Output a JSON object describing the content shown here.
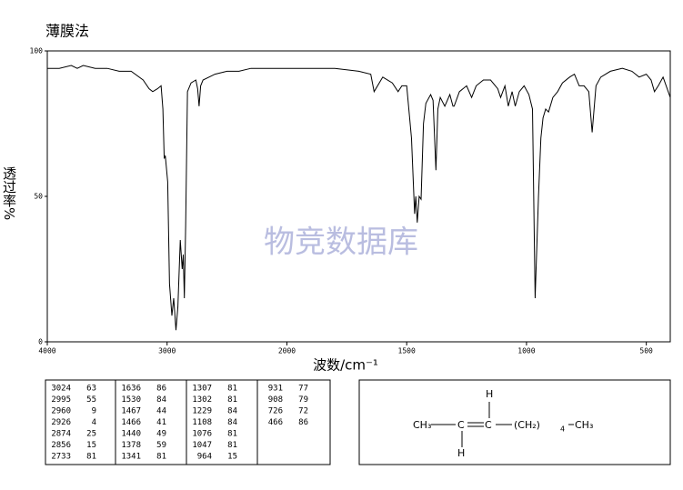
{
  "chart_data": {
    "type": "line",
    "title": "薄膜法",
    "xlabel": "波数/cm⁻¹",
    "ylabel": "透过率%",
    "watermark": "物竞数据库",
    "xlim": [
      4000,
      400
    ],
    "xscale_change_at": 2000,
    "xscale_factor": 2,
    "xticks": [
      4000,
      3000,
      2000,
      1500,
      1000,
      500
    ],
    "ylim": [
      0,
      100
    ],
    "yticks": [
      0,
      50,
      100
    ],
    "color": "#000000",
    "x": [
      4000,
      3900,
      3800,
      3750,
      3700,
      3600,
      3500,
      3400,
      3300,
      3200,
      3150,
      3120,
      3080,
      3050,
      3035,
      3024,
      3015,
      2995,
      2980,
      2960,
      2945,
      2926,
      2910,
      2890,
      2874,
      2865,
      2856,
      2845,
      2830,
      2800,
      2760,
      2745,
      2733,
      2720,
      2700,
      2600,
      2500,
      2400,
      2300,
      2200,
      2100,
      2000,
      1900,
      1800,
      1700,
      1650,
      1636,
      1600,
      1560,
      1536,
      1520,
      1500,
      1480,
      1467,
      1462,
      1456,
      1448,
      1440,
      1430,
      1420,
      1400,
      1390,
      1378,
      1370,
      1360,
      1341,
      1320,
      1307,
      1302,
      1280,
      1250,
      1229,
      1210,
      1180,
      1150,
      1120,
      1108,
      1090,
      1076,
      1060,
      1047,
      1030,
      1010,
      990,
      975,
      964,
      950,
      940,
      931,
      920,
      908,
      890,
      870,
      850,
      820,
      800,
      780,
      760,
      740,
      726,
      710,
      690,
      650,
      600,
      560,
      530,
      500,
      480,
      466,
      450,
      430,
      400
    ],
    "values": [
      94,
      94,
      95,
      94,
      95,
      94,
      94,
      93,
      93,
      90,
      87,
      86,
      87,
      88,
      80,
      63,
      64,
      55,
      20,
      9,
      15,
      4,
      12,
      35,
      25,
      30,
      15,
      40,
      86,
      89,
      90,
      87,
      81,
      88,
      90,
      92,
      93,
      93,
      94,
      94,
      94,
      94,
      94,
      94,
      93,
      92,
      86,
      91,
      89,
      86,
      88,
      88,
      70,
      44,
      50,
      41,
      50,
      49,
      75,
      82,
      85,
      83,
      59,
      80,
      84,
      81,
      85,
      81,
      81,
      86,
      88,
      84,
      88,
      90,
      90,
      87,
      84,
      88,
      81,
      86,
      81,
      86,
      88,
      85,
      80,
      15,
      50,
      70,
      77,
      80,
      79,
      84,
      86,
      89,
      91,
      92,
      88,
      88,
      86,
      72,
      88,
      91,
      93,
      94,
      93,
      91,
      92,
      90,
      86,
      88,
      91,
      84
    ]
  },
  "peak_table": [
    [
      [
        3024,
        63
      ],
      [
        2995,
        55
      ],
      [
        2960,
        9
      ],
      [
        2926,
        4
      ],
      [
        2874,
        25
      ],
      [
        2856,
        15
      ],
      [
        2733,
        81
      ]
    ],
    [
      [
        1636,
        86
      ],
      [
        1530,
        84
      ],
      [
        1467,
        44
      ],
      [
        1466,
        41
      ],
      [
        1440,
        49
      ],
      [
        1378,
        59
      ],
      [
        1341,
        81
      ]
    ],
    [
      [
        1307,
        81
      ],
      [
        1302,
        81
      ],
      [
        1229,
        84
      ],
      [
        1108,
        84
      ],
      [
        1076,
        81
      ],
      [
        1047,
        81
      ],
      [
        964,
        15
      ]
    ],
    [
      [
        931,
        77
      ],
      [
        908,
        79
      ],
      [
        726,
        72
      ],
      [
        466,
        86
      ]
    ]
  ],
  "structure": {
    "left": "CH₃",
    "c1": "C",
    "c2": "C",
    "h_top": "H",
    "h_bottom": "H",
    "group": "(CH₂)",
    "group_sub": "4",
    "right": "CH₃"
  }
}
